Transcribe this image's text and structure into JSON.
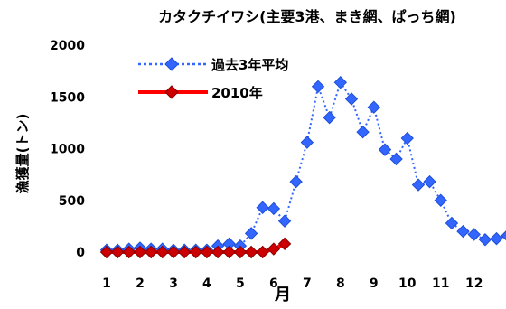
{
  "chart_data": {
    "type": "line",
    "title": "カタクチイワシ(主要3港、まき網、ぱっち網)",
    "xlabel": "月",
    "ylabel": "漁獲量(トン)",
    "xlim": [
      1,
      12.9
    ],
    "ylim": [
      0,
      2000
    ],
    "x_ticks": [
      1,
      2,
      3,
      4,
      5,
      6,
      7,
      8,
      9,
      10,
      11,
      12
    ],
    "x_tick_labels": [
      "1",
      "2",
      "3",
      "4",
      "5",
      "6",
      "7",
      "8",
      "9",
      "10",
      "11",
      "12"
    ],
    "y_ticks": [
      0,
      500,
      1000,
      1500,
      2000
    ],
    "y_tick_labels": [
      "0",
      "500",
      "1000",
      "1500",
      "2000"
    ],
    "grid": false,
    "legend_position": "top-left",
    "series": [
      {
        "name": "過去3年平均",
        "color": "#3366ff",
        "style": "dotted",
        "marker": "diamond",
        "x": [
          1.0,
          1.33,
          1.67,
          2.0,
          2.33,
          2.67,
          3.0,
          3.33,
          3.67,
          4.0,
          4.33,
          4.67,
          5.0,
          5.33,
          5.67,
          6.0,
          6.33,
          6.67,
          7.0,
          7.33,
          7.67,
          8.0,
          8.33,
          8.67,
          9.0,
          9.33,
          9.67,
          10.0,
          10.33,
          10.67,
          11.0,
          11.33,
          11.67,
          12.0,
          12.33,
          12.67,
          13.0
        ],
        "y": [
          20,
          20,
          30,
          40,
          30,
          30,
          20,
          20,
          20,
          20,
          60,
          80,
          60,
          180,
          430,
          420,
          300,
          680,
          1060,
          1600,
          1300,
          1640,
          1480,
          1160,
          1400,
          990,
          900,
          1100,
          650,
          680,
          500,
          280,
          200,
          170,
          120,
          130,
          160
        ]
      },
      {
        "name": "2010年",
        "color": "#ff0000",
        "style": "solid",
        "marker": "diamond",
        "x": [
          1.0,
          1.33,
          1.67,
          2.0,
          2.33,
          2.67,
          3.0,
          3.33,
          3.67,
          4.0,
          4.33,
          4.67,
          5.0,
          5.33,
          5.67,
          6.0,
          6.33
        ],
        "y": [
          0,
          0,
          0,
          0,
          0,
          0,
          0,
          0,
          0,
          0,
          0,
          0,
          0,
          0,
          0,
          30,
          80
        ]
      }
    ]
  }
}
